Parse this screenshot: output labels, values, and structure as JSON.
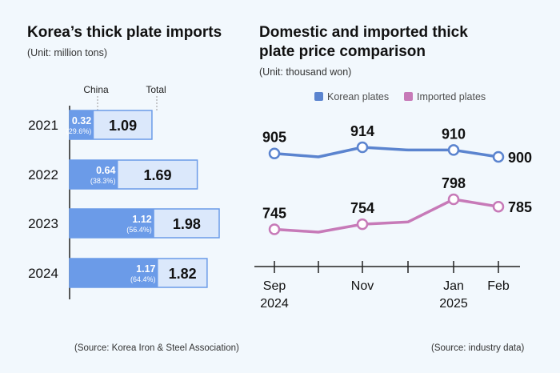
{
  "left": {
    "title": "Korea’s thick plate imports",
    "unit": "(Unit: million tons)",
    "col_china": "China",
    "col_total": "Total",
    "source": "(Source: Korea Iron & Steel Association)"
  },
  "right": {
    "title_line1": "Domestic and imported thick",
    "title_line2": "plate price comparison",
    "unit": "(Unit: thousand won)",
    "source": "(Source: industry data)"
  },
  "colors": {
    "china_fill": "#6b9be8",
    "total_fill": "#dbe8fb",
    "total_border": "#6b9be8",
    "korean": "#5b84cf",
    "imported": "#c77ab8"
  },
  "chart_data": [
    {
      "type": "bar",
      "orientation": "horizontal",
      "stacked": "overlay",
      "title": "Korea’s thick plate imports",
      "unit": "(Unit: million tons)",
      "categories": [
        "2021",
        "2022",
        "2023",
        "2024"
      ],
      "series": [
        {
          "name": "China",
          "values": [
            0.32,
            0.64,
            1.12,
            1.17
          ],
          "labels": [
            "0.32",
            "0.64",
            "1.12",
            "1.17"
          ],
          "shares": [
            "(29.6%)",
            "(38.3%)",
            "(56.4%)",
            "(64.4%)"
          ]
        },
        {
          "name": "Total",
          "values": [
            1.09,
            1.69,
            1.98,
            1.82
          ],
          "labels": [
            "1.09",
            "1.69",
            "1.98",
            "1.82"
          ]
        }
      ],
      "xlim": [
        0,
        1.98
      ],
      "grid": false
    },
    {
      "type": "line",
      "title": "Domestic and imported thick plate price comparison",
      "unit": "(Unit: thousand won)",
      "x_ticks": [
        "Sep 2024",
        "Nov",
        "Jan 2025",
        "Feb"
      ],
      "series": [
        {
          "name": "Korean plates",
          "values": [
            905,
            900,
            914,
            910,
            910,
            900
          ],
          "labels": [
            "905",
            "",
            "914",
            "",
            "910",
            "900"
          ],
          "markers": [
            true,
            false,
            true,
            false,
            true,
            true
          ]
        },
        {
          "name": "Imported plates",
          "values": [
            745,
            740,
            754,
            758,
            798,
            785
          ],
          "labels": [
            "745",
            "",
            "754",
            "",
            "798",
            "785"
          ],
          "markers": [
            true,
            false,
            true,
            false,
            true,
            true
          ]
        }
      ],
      "legend": "top",
      "grid": false
    }
  ]
}
